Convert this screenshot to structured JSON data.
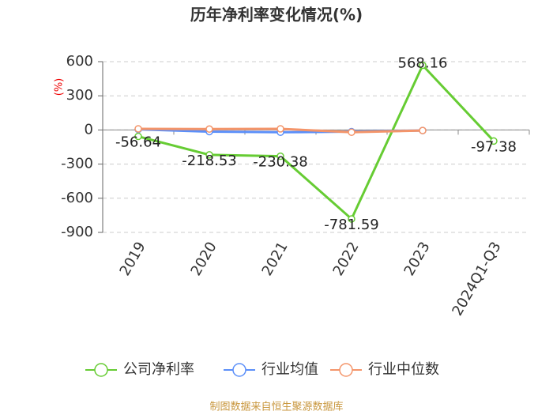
{
  "chart_data": {
    "type": "line",
    "title": "历年净利率变化情况(%)",
    "y_label": "(%)",
    "categories": [
      "2019",
      "2020",
      "2021",
      "2022",
      "2023",
      "2024Q1-Q3"
    ],
    "series": [
      {
        "name": "公司净利率",
        "color": "#66cc33",
        "values": [
          -56.64,
          -218.53,
          -230.38,
          -781.59,
          568.16,
          -97.38
        ],
        "show_labels": true
      },
      {
        "name": "行业均值",
        "color": "#5b8ff9",
        "values": [
          5,
          -15,
          -20,
          -15,
          -5,
          null
        ]
      },
      {
        "name": "行业中位数",
        "color": "#f4956a",
        "values": [
          10,
          8,
          10,
          -20,
          -5,
          null
        ]
      }
    ],
    "ylim": [
      -900,
      600
    ],
    "yticks": [
      600,
      300,
      0,
      -300,
      -600,
      -900
    ],
    "grid": true,
    "source": "制图数据来自恒生聚源数据库"
  }
}
